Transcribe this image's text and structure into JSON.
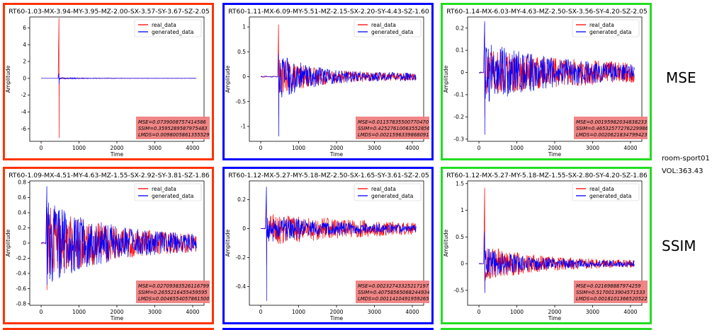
{
  "side": {
    "metric_top": "MSE",
    "room": "room-sport01",
    "volume": "VOL:363.43",
    "metric_bottom": "SSIM"
  },
  "legend": {
    "real": "real_data",
    "generated": "generated_data"
  },
  "colors": {
    "real": "#ff0000",
    "generated": "#0000ff",
    "frames": [
      "#ff3300",
      "#0000ff",
      "#22dd22",
      "#ff3300",
      "#0000ff",
      "#22dd22"
    ],
    "metrics_box": "#f08080"
  },
  "chart_data": [
    {
      "type": "line",
      "title": "RT60-1.03-MX-3.94-MY-3.95-MZ-2.00-SX-3.57-SY-3.67-SZ-2.05",
      "xlabel": "Time",
      "ylabel": "Amplitude",
      "xlim": [
        -300,
        4300
      ],
      "ylim": [
        -7.5,
        7.3
      ],
      "xticks": [
        0,
        1000,
        2000,
        3000,
        4000
      ],
      "yticks": [
        -6,
        -4,
        -2,
        0,
        2,
        4,
        6
      ],
      "legend_position": "top-right",
      "metrics": {
        "mse": "MSE=0.0739008757414586",
        "ssim": "SSIM=0.3595289587975483",
        "lmds": "LMDS=0.00980058613555291"
      },
      "signal": {
        "onset_x": 470,
        "real_spike": [
          7.2,
          -7.1
        ],
        "gen_spike": [
          0.6,
          -0.7
        ],
        "end_x": 4100,
        "real_amp": 0.08,
        "gen_amp": 0.1,
        "real_decay": 0.002,
        "gen_decay": 0.0012
      }
    },
    {
      "type": "line",
      "title": "RT60-1.11-MX-6.09-MY-5.51-MZ-2.15-SX-2.20-SY-4.43-SZ-1.60",
      "xlabel": "Time",
      "ylabel": "Amplitude",
      "xlim": [
        -300,
        4300
      ],
      "ylim": [
        -1.3,
        1.2
      ],
      "xticks": [
        0,
        1000,
        2000,
        3000,
        4000
      ],
      "yticks": [
        -1.0,
        -0.5,
        0.0,
        0.5,
        1.0
      ],
      "legend_position": "top-right",
      "metrics": {
        "mse": "MSE=0.01157835500770470",
        "ssim": "SSIM=0.42527610063552856",
        "lmds": "LMDS=0.00215963398680918"
      },
      "signal": {
        "onset_x": 470,
        "real_spike": [
          1.05,
          -0.8
        ],
        "gen_spike": [
          0.45,
          -1.2
        ],
        "end_x": 4100,
        "real_amp": 0.38,
        "gen_amp": 0.48,
        "real_decay": 0.0009,
        "gen_decay": 0.0011
      }
    },
    {
      "type": "line",
      "title": "RT60-1.14-MX-6.03-MY-4.63-MZ-2.50-SX-3.56-SY-4.20-SZ-2.05",
      "xlabel": "Time",
      "ylabel": "Amplitude",
      "xlim": [
        -300,
        4300
      ],
      "ylim": [
        -0.31,
        0.25
      ],
      "xticks": [
        0,
        1000,
        2000,
        3000,
        4000
      ],
      "yticks": [
        -0.3,
        -0.2,
        -0.1,
        0.0,
        0.1,
        0.2
      ],
      "legend_position": "top-right",
      "metrics": {
        "mse": "MSE=0.00195982034838233",
        "ssim": "SSIM=0.46532577276229986",
        "lmds": "LMDS=0.00206218347994230"
      },
      "signal": {
        "onset_x": 150,
        "real_spike": [
          0.22,
          -0.2
        ],
        "gen_spike": [
          0.23,
          -0.28
        ],
        "end_x": 4100,
        "real_amp": 0.11,
        "gen_amp": 0.14,
        "real_decay": 0.0003,
        "gen_decay": 0.0005
      }
    },
    {
      "type": "line",
      "title": "RT60-1.09-MX-4.51-MY-4.63-MZ-1.55-SX-2.92-SY-3.81-SZ-1.86",
      "xlabel": "Time",
      "ylabel": "Amplitude",
      "xlim": [
        -300,
        4300
      ],
      "ylim": [
        -0.82,
        0.82
      ],
      "xticks": [
        0,
        1000,
        2000,
        3000,
        4000
      ],
      "yticks": [
        -0.8,
        -0.6,
        -0.4,
        -0.2,
        0.0,
        0.2,
        0.4,
        0.6,
        0.8
      ],
      "legend_position": "top-right",
      "metrics": {
        "mse": "MSE=0.02709383526116799",
        "ssim": "SSIM=0.2655216455459595",
        "lmds": "LMDS=0.00465540578615008"
      },
      "signal": {
        "onset_x": 150,
        "real_spike": [
          0.55,
          -0.62
        ],
        "gen_spike": [
          0.75,
          -0.55
        ],
        "end_x": 4100,
        "real_amp": 0.5,
        "gen_amp": 0.55,
        "real_decay": 0.00055,
        "gen_decay": 0.0006
      }
    },
    {
      "type": "line",
      "title": "RT60-1.12-MX-5.27-MY-5.18-MZ-2.50-SX-1.65-SY-3.61-SZ-2.05",
      "xlabel": "Time",
      "ylabel": "Amplitude",
      "xlim": [
        -300,
        4300
      ],
      "ylim": [
        -0.53,
        0.33
      ],
      "xticks": [
        0,
        1000,
        2000,
        3000,
        4000
      ],
      "yticks": [
        -0.4,
        -0.2,
        0.0,
        0.2
      ],
      "legend_position": "top-right",
      "metrics": {
        "mse": "MSE=0.00232743325217197",
        "ssim": "SSIM=0.40758565068244934",
        "lmds": "LMDS=0.00114104919592654"
      },
      "signal": {
        "onset_x": 150,
        "real_spike": [
          0.2,
          -0.25
        ],
        "gen_spike": [
          0.29,
          -0.5
        ],
        "end_x": 4100,
        "real_amp": 0.12,
        "gen_amp": 0.1,
        "real_decay": 0.00035,
        "gen_decay": 0.0005
      }
    },
    {
      "type": "line",
      "title": "RT60-1.12-MX-5.27-MY-5.18-MZ-1.55-SX-2.80-SY-4.20-SZ-1.86",
      "xlabel": "Time",
      "ylabel": "Amplitude",
      "xlim": [
        -300,
        4300
      ],
      "ylim": [
        -0.78,
        1.55
      ],
      "xticks": [
        0,
        1000,
        2000,
        3000,
        4000
      ],
      "yticks": [
        -0.5,
        0.0,
        0.5,
        1.0,
        1.5
      ],
      "legend_position": "top-right",
      "metrics": {
        "mse": "MSE=0.021698887974259",
        "ssim": "SSIM=0.5170013904571533",
        "lmds": "LMDS=0.00181013665205220"
      },
      "signal": {
        "onset_x": 150,
        "real_spike": [
          1.42,
          -0.5
        ],
        "gen_spike": [
          0.6,
          -0.55
        ],
        "end_x": 4100,
        "real_amp": 0.35,
        "gen_amp": 0.3,
        "real_decay": 0.0007,
        "gen_decay": 0.0008
      }
    }
  ]
}
